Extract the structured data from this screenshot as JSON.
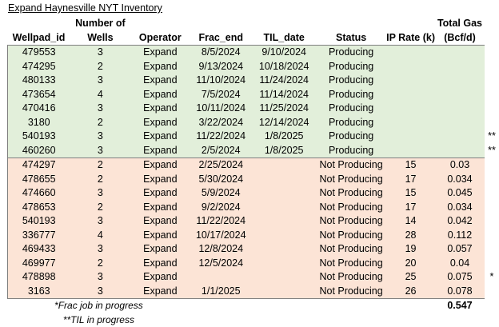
{
  "title": "Expand Haynesville NYT Inventory",
  "headers": {
    "top": {
      "wells": "Number of",
      "total_gas": "Total Gas"
    },
    "bottom": {
      "wellpad_id": "Wellpad_id",
      "wells": "Wells",
      "operator": "Operator",
      "frac_end": "Frac_end",
      "til_date": "TIL_date",
      "status": "Status",
      "ip_rate": "IP Rate (k)",
      "total_gas": "(Bcf/d)"
    }
  },
  "producing_rows": [
    {
      "wellpad_id": "479553",
      "wells": "3",
      "operator": "Expand",
      "frac_end": "8/5/2024",
      "til_date": "9/10/2024",
      "status": "Producing",
      "ip_rate": "",
      "total_gas": "",
      "mark": ""
    },
    {
      "wellpad_id": "474295",
      "wells": "2",
      "operator": "Expand",
      "frac_end": "9/13/2024",
      "til_date": "10/18/2024",
      "status": "Producing",
      "ip_rate": "",
      "total_gas": "",
      "mark": ""
    },
    {
      "wellpad_id": "480133",
      "wells": "3",
      "operator": "Expand",
      "frac_end": "11/10/2024",
      "til_date": "11/24/2024",
      "status": "Producing",
      "ip_rate": "",
      "total_gas": "",
      "mark": ""
    },
    {
      "wellpad_id": "473654",
      "wells": "4",
      "operator": "Expand",
      "frac_end": "7/5/2024",
      "til_date": "11/14/2024",
      "status": "Producing",
      "ip_rate": "",
      "total_gas": "",
      "mark": ""
    },
    {
      "wellpad_id": "470416",
      "wells": "3",
      "operator": "Expand",
      "frac_end": "10/11/2024",
      "til_date": "11/25/2024",
      "status": "Producing",
      "ip_rate": "",
      "total_gas": "",
      "mark": ""
    },
    {
      "wellpad_id": "3180",
      "wells": "2",
      "operator": "Expand",
      "frac_end": "3/22/2024",
      "til_date": "12/14/2024",
      "status": "Producing",
      "ip_rate": "",
      "total_gas": "",
      "mark": ""
    },
    {
      "wellpad_id": "540193",
      "wells": "3",
      "operator": "Expand",
      "frac_end": "11/22/2024",
      "til_date": "1/8/2025",
      "status": "Producing",
      "ip_rate": "",
      "total_gas": "",
      "mark": "**"
    },
    {
      "wellpad_id": "460260",
      "wells": "3",
      "operator": "Expand",
      "frac_end": "2/5/2024",
      "til_date": "1/8/2025",
      "status": "Producing",
      "ip_rate": "",
      "total_gas": "",
      "mark": "**"
    }
  ],
  "not_producing_rows": [
    {
      "wellpad_id": "474297",
      "wells": "2",
      "operator": "Expand",
      "frac_end": "2/25/2024",
      "til_date": "",
      "status": "Not Producing",
      "ip_rate": "15",
      "total_gas": "0.03",
      "mark": ""
    },
    {
      "wellpad_id": "478655",
      "wells": "2",
      "operator": "Expand",
      "frac_end": "5/30/2024",
      "til_date": "",
      "status": "Not Producing",
      "ip_rate": "17",
      "total_gas": "0.034",
      "mark": ""
    },
    {
      "wellpad_id": "474660",
      "wells": "3",
      "operator": "Expand",
      "frac_end": "5/9/2024",
      "til_date": "",
      "status": "Not Producing",
      "ip_rate": "15",
      "total_gas": "0.045",
      "mark": ""
    },
    {
      "wellpad_id": "478653",
      "wells": "2",
      "operator": "Expand",
      "frac_end": "9/2/2024",
      "til_date": "",
      "status": "Not Producing",
      "ip_rate": "17",
      "total_gas": "0.034",
      "mark": ""
    },
    {
      "wellpad_id": "540193",
      "wells": "3",
      "operator": "Expand",
      "frac_end": "11/22/2024",
      "til_date": "",
      "status": "Not Producing",
      "ip_rate": "14",
      "total_gas": "0.042",
      "mark": ""
    },
    {
      "wellpad_id": "336777",
      "wells": "4",
      "operator": "Expand",
      "frac_end": "10/17/2024",
      "til_date": "",
      "status": "Not Producing",
      "ip_rate": "28",
      "total_gas": "0.112",
      "mark": ""
    },
    {
      "wellpad_id": "469433",
      "wells": "3",
      "operator": "Expand",
      "frac_end": "12/8/2024",
      "til_date": "",
      "status": "Not Producing",
      "ip_rate": "19",
      "total_gas": "0.057",
      "mark": ""
    },
    {
      "wellpad_id": "469977",
      "wells": "2",
      "operator": "Expand",
      "frac_end": "12/5/2024",
      "til_date": "",
      "status": "Not Producing",
      "ip_rate": "20",
      "total_gas": "0.04",
      "mark": ""
    },
    {
      "wellpad_id": "478898",
      "wells": "3",
      "operator": "Expand",
      "frac_end": "",
      "til_date": "",
      "status": "Not Producing",
      "ip_rate": "25",
      "total_gas": "0.075",
      "mark": "*"
    },
    {
      "wellpad_id": "3163",
      "wells": "3",
      "operator": "Expand",
      "frac_end": "1/1/2025",
      "til_date": "",
      "status": "Not Producing",
      "ip_rate": "26",
      "total_gas": "0.078",
      "mark": ""
    }
  ],
  "footnotes": {
    "frac": "*Frac job in progress",
    "til": "**TIL in progress"
  },
  "total": "0.547"
}
